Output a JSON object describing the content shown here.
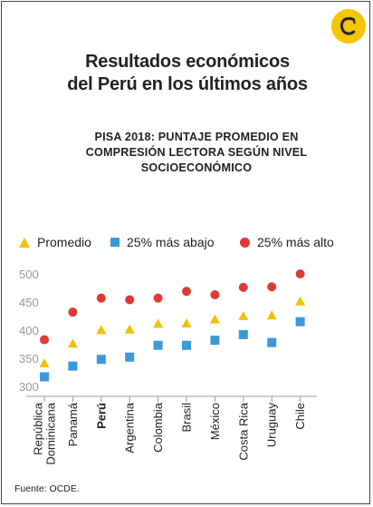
{
  "header": {
    "title_line1": "Resultados económicos",
    "title_line2": "del Perú en los últimos años",
    "logo_icon": "el-comercio-c-logo",
    "logo_color": "#F3C600"
  },
  "chart_data": {
    "type": "scatter",
    "title": "PISA 2018: PUNTAJE PROMEDIO EN COMPRESIÓN LECTORA SEGÚN NIVEL SOCIOECONÓMICO",
    "title_lines": [
      "PISA 2018: PUNTAJE PROMEDIO EN",
      "COMPRESIÓN LECTORA SEGÚN NIVEL",
      "SOCIOECONÓMICO"
    ],
    "categories": [
      "República Dominicana",
      "Panamá",
      "Perú",
      "Argentina",
      "Colombia",
      "Brasil",
      "México",
      "Costa Rica",
      "Uruguay",
      "Chile"
    ],
    "category_lines": [
      [
        "República",
        "Dominicana"
      ],
      [
        "Panamá"
      ],
      [
        "Perú"
      ],
      [
        "Argentina"
      ],
      [
        "Colombia"
      ],
      [
        "Brasil"
      ],
      [
        "México"
      ],
      [
        "Costa Rica"
      ],
      [
        "Uruguay"
      ],
      [
        "Chile"
      ]
    ],
    "highlight_category": "Perú",
    "series": [
      {
        "name": "Promedio",
        "marker": "triangle",
        "color": "#F2C200",
        "values": [
          342,
          377,
          401,
          402,
          412,
          413,
          420,
          426,
          427,
          452
        ]
      },
      {
        "name": "25% más abajo",
        "marker": "square",
        "color": "#3A9AD9",
        "values": [
          317,
          336,
          348,
          352,
          373,
          373,
          382,
          392,
          378,
          415
        ]
      },
      {
        "name": "25% más alto",
        "marker": "circle",
        "color": "#E03A35",
        "values": [
          383,
          432,
          457,
          454,
          457,
          469,
          463,
          476,
          477,
          500
        ]
      }
    ],
    "yticks": [
      300,
      350,
      400,
      450,
      500
    ],
    "ylim": [
      295,
      510
    ],
    "xlabel": "",
    "ylabel": "",
    "grid": false,
    "legend_position": "top"
  },
  "footer": {
    "source": "Fuente: OCDE."
  },
  "colors": {
    "axis": "#999999",
    "tick_label": "#999999",
    "text": "#222222"
  }
}
